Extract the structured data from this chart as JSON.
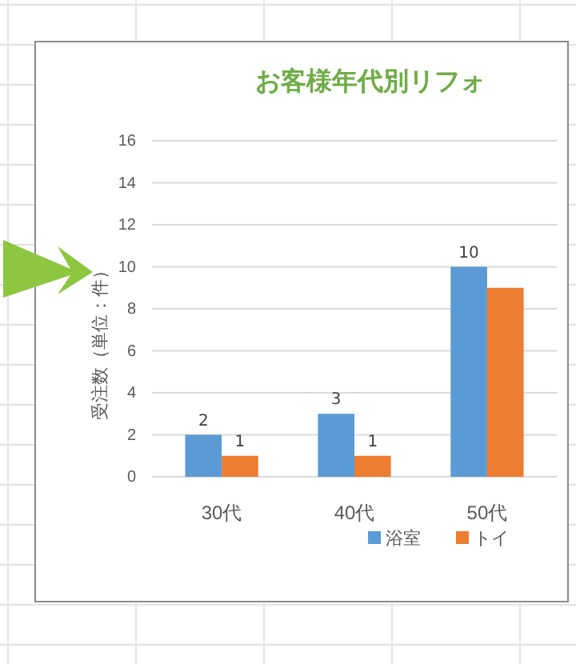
{
  "chart_data": {
    "type": "bar",
    "title": "お客様年代別リフォ",
    "ylabel": "受注数（単位：件）",
    "categories": [
      "30代",
      "40代",
      "50代"
    ],
    "series": [
      {
        "name": "浴室",
        "color": "#5b9bd5",
        "values": [
          2,
          3,
          10
        ],
        "value_labels": [
          "2",
          "3",
          "10"
        ]
      },
      {
        "name": "トイ",
        "color": "#ed7d31",
        "values": [
          1,
          1,
          9
        ],
        "value_labels": [
          "1",
          "1",
          null
        ]
      }
    ],
    "ylim": [
      0,
      16
    ],
    "yticks": [
      0,
      2,
      4,
      6,
      8,
      10,
      12,
      14,
      16
    ],
    "grid": "y",
    "legend": "bottom right"
  }
}
